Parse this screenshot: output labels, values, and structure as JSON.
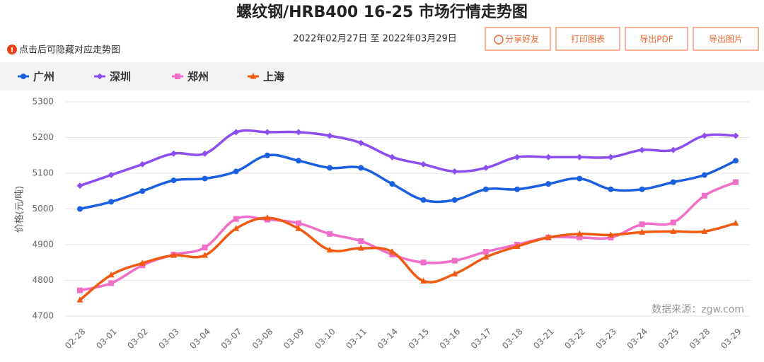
{
  "chart_data": {
    "type": "line",
    "title": "螺纹钢/HRB400 16-25 市场行情走势图",
    "subtitle": "2022年02月27日 至 2022年03月29日",
    "hint": "点击后可隐藏对应走势图",
    "buttons": [
      "分享好友",
      "打印图表",
      "导出PDF",
      "导出图片"
    ],
    "y_label": "价格(元/吨)",
    "source": "数据来源：zgw.com",
    "categories": [
      "02-28",
      "03-01",
      "03-02",
      "03-03",
      "03-04",
      "03-07",
      "03-08",
      "03-09",
      "03-10",
      "03-11",
      "03-14",
      "03-15",
      "03-16",
      "03-17",
      "03-18",
      "03-21",
      "03-22",
      "03-23",
      "03-24",
      "03-25",
      "03-28",
      "03-29"
    ],
    "series": [
      {
        "name": "广州",
        "color": "#1a5fe0",
        "marker": "circle",
        "values": [
          5000,
          5020,
          5050,
          5080,
          5085,
          5105,
          5150,
          5135,
          5115,
          5115,
          5070,
          5025,
          5025,
          5055,
          5055,
          5070,
          5085,
          5055,
          5055,
          5075,
          5095,
          5135
        ]
      },
      {
        "name": "深圳",
        "color": "#8b4ef0",
        "marker": "diamond",
        "values": [
          5065,
          5095,
          5125,
          5155,
          5155,
          5215,
          5215,
          5215,
          5205,
          5185,
          5145,
          5125,
          5105,
          5115,
          5145,
          5145,
          5145,
          5145,
          5165,
          5165,
          5205,
          5205
        ]
      },
      {
        "name": "郑州",
        "color": "#f06ec8",
        "marker": "square",
        "values": [
          4772,
          4792,
          4842,
          4872,
          4892,
          4972,
          4970,
          4960,
          4930,
          4910,
          4872,
          4850,
          4855,
          4880,
          4900,
          4920,
          4920,
          4920,
          4957,
          4962,
          5037,
          5075
        ]
      },
      {
        "name": "上海",
        "color": "#f05a10",
        "marker": "triangle",
        "values": [
          4745,
          4815,
          4848,
          4870,
          4870,
          4945,
          4975,
          4945,
          4885,
          4890,
          4880,
          4798,
          4818,
          4865,
          4895,
          4920,
          4930,
          4927,
          4935,
          4937,
          4937,
          4960
        ]
      }
    ],
    "ylim": [
      4700,
      5300
    ],
    "yticks": [
      4700,
      4800,
      4900,
      5000,
      5100,
      5200,
      5300
    ],
    "grid": true
  }
}
